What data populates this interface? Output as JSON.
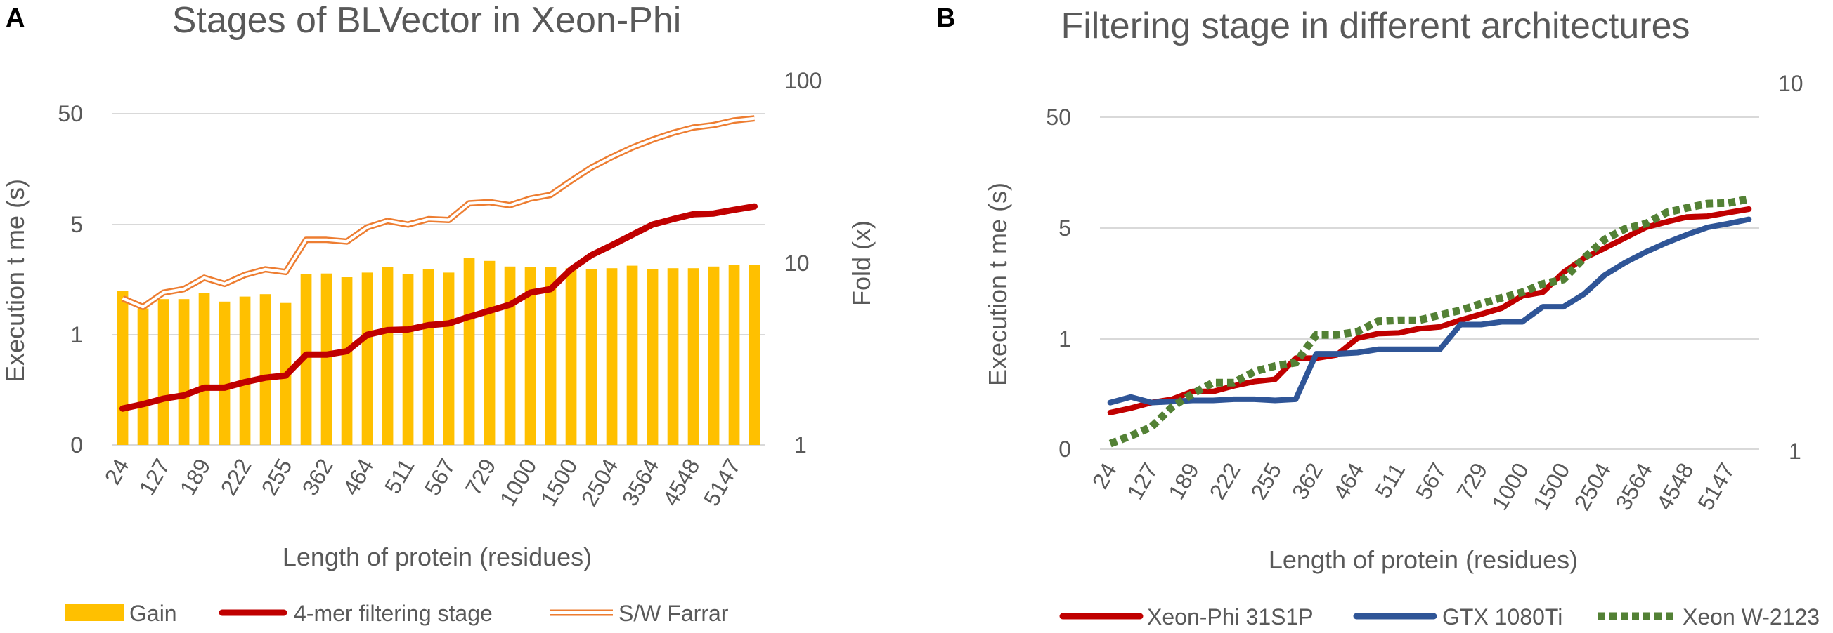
{
  "chart_data": [
    {
      "panel": "A",
      "type": "bar+line",
      "title": "Stages of BLVector in Xeon-Phi",
      "xlabel": "Length of protein (residues)",
      "ylabel": "Execution t me (s)",
      "y2label": "Fold (x)",
      "categories": [
        "24",
        "",
        "127",
        "",
        "189",
        "",
        "222",
        "",
        "255",
        "",
        "362",
        "",
        "464",
        "",
        "511",
        "",
        "567",
        "",
        "729",
        "",
        "1000",
        "",
        "1500",
        "",
        "2504",
        "",
        "3564",
        "",
        "4548",
        "",
        "5147",
        ""
      ],
      "x_tick_labels": [
        "24",
        "127",
        "189",
        "222",
        "255",
        "362",
        "464",
        "511",
        "567",
        "729",
        "1000",
        "1500",
        "2504",
        "3564",
        "4548",
        "5147"
      ],
      "y_ticks": [
        "0",
        "1",
        "5",
        "50"
      ],
      "y2_ticks": [
        "1",
        "10",
        "100"
      ],
      "series": [
        {
          "name": "Gain",
          "kind": "bar",
          "axis": "right",
          "color": "#ffc000",
          "values": [
            7.0,
            5.6,
            6.3,
            6.3,
            6.8,
            6.1,
            6.5,
            6.7,
            6.0,
            8.6,
            8.7,
            8.3,
            8.8,
            9.4,
            8.6,
            9.2,
            8.8,
            10.6,
            10.2,
            9.5,
            9.4,
            9.4,
            9.3,
            9.2,
            9.3,
            9.6,
            9.2,
            9.3,
            9.3,
            9.5,
            9.7,
            9.7
          ]
        },
        {
          "name": "4-mer filtering stage",
          "kind": "line",
          "axis": "left",
          "color": "#c00000",
          "values": [
            0.33,
            0.37,
            0.42,
            0.45,
            0.52,
            0.52,
            0.57,
            0.61,
            0.63,
            0.82,
            0.82,
            0.85,
            1.0,
            1.07,
            1.08,
            1.15,
            1.18,
            1.3,
            1.42,
            1.55,
            1.85,
            1.95,
            2.6,
            3.2,
            3.7,
            4.3,
            5.0,
            5.6,
            6.2,
            6.3,
            6.8,
            7.3
          ]
        },
        {
          "name": "S/W Farrar",
          "kind": "double-line",
          "axis": "left",
          "color": "#ed7d31",
          "values": [
            1.7,
            1.5,
            1.85,
            1.95,
            2.3,
            2.1,
            2.4,
            2.6,
            2.5,
            4.0,
            4.0,
            3.9,
            4.8,
            5.4,
            5.0,
            5.6,
            5.5,
            7.8,
            8.0,
            7.5,
            8.6,
            9.3,
            12.5,
            16.5,
            20.5,
            25.0,
            29.5,
            34.0,
            38.0,
            40.0,
            44.0,
            46.0
          ]
        }
      ]
    },
    {
      "panel": "B",
      "type": "line",
      "title": "Filtering stage in different architectures",
      "xlabel": "Length of protein (residues)",
      "ylabel": "Execution t me (s)",
      "categories": [
        "24",
        "",
        "127",
        "",
        "189",
        "",
        "222",
        "",
        "255",
        "",
        "362",
        "",
        "464",
        "",
        "511",
        "",
        "567",
        "",
        "729",
        "",
        "1000",
        "",
        "1500",
        "",
        "2504",
        "",
        "3564",
        "",
        "4548",
        "",
        "5147",
        ""
      ],
      "x_tick_labels": [
        "24",
        "127",
        "189",
        "222",
        "255",
        "362",
        "464",
        "511",
        "567",
        "729",
        "1000",
        "1500",
        "2504",
        "3564",
        "4548",
        "5147"
      ],
      "y_ticks": [
        "0",
        "1",
        "5",
        "50"
      ],
      "y2_ticks": [
        "1",
        "10"
      ],
      "series": [
        {
          "name": "Xeon-Phi 31S1P",
          "style": "solid",
          "color": "#c00000",
          "values": [
            0.33,
            0.37,
            0.42,
            0.45,
            0.52,
            0.52,
            0.57,
            0.61,
            0.63,
            0.82,
            0.82,
            0.85,
            1.0,
            1.07,
            1.08,
            1.15,
            1.18,
            1.3,
            1.42,
            1.55,
            1.85,
            1.95,
            2.6,
            3.2,
            3.7,
            4.3,
            5.0,
            5.6,
            6.2,
            6.3,
            6.8,
            7.3
          ]
        },
        {
          "name": "GTX 1080Ti",
          "style": "solid",
          "color": "#2f5597",
          "values": [
            0.42,
            0.47,
            0.42,
            0.43,
            0.44,
            0.44,
            0.45,
            0.45,
            0.44,
            0.45,
            0.86,
            0.86,
            0.87,
            0.9,
            0.9,
            0.9,
            0.9,
            1.22,
            1.22,
            1.27,
            1.27,
            1.58,
            1.58,
            1.9,
            2.5,
            3.0,
            3.5,
            4.0,
            4.5,
            5.0,
            5.4,
            5.9
          ]
        },
        {
          "name": "Xeon W-2123",
          "style": "dotted",
          "color": "#538135",
          "values": [
            0.05,
            0.12,
            0.2,
            0.38,
            0.5,
            0.6,
            0.6,
            0.7,
            0.75,
            0.78,
            1.05,
            1.05,
            1.1,
            1.28,
            1.3,
            1.3,
            1.4,
            1.5,
            1.65,
            1.8,
            1.95,
            2.2,
            2.35,
            3.2,
            4.2,
            4.9,
            5.4,
            6.8,
            7.5,
            8.2,
            8.3,
            9.0
          ]
        }
      ]
    }
  ]
}
